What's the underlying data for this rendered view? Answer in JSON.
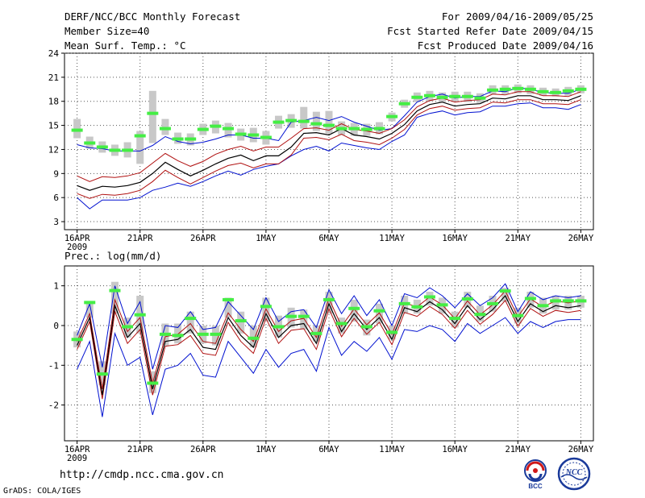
{
  "header": {
    "title": "DERF/NCC/BCC Monthly Forecast",
    "member_size": "Member Size=40",
    "variable": "Mean Surf. Temp.: °C",
    "period": "For 2009/04/16-2009/05/25",
    "fcst_started": "Fcst Started Refer Date 2009/04/15",
    "fcst_produced": "Fcst Produced Date 2009/04/16"
  },
  "footer": {
    "url": "http://cmdp.ncc.cma.gov.cn",
    "grads": "GrADS: COLA/IGES",
    "logo_bcc": "BCC",
    "logo_ncc": "NCC"
  },
  "colors": {
    "observed": "#44ee44",
    "box": "#c8c8c8",
    "mean": "#000000",
    "inner_band": "#b01010",
    "outer_band": "#0010d0",
    "grid": "#555555"
  },
  "chart_data": [
    {
      "type": "line",
      "title": "Mean Surf. Temp.: °C",
      "x_labels": [
        "16APR",
        "21APR",
        "26APR",
        "1MAY",
        "6MAY",
        "11MAY",
        "16MAY",
        "21MAY",
        "26MAY"
      ],
      "x_year_label": "2009",
      "x_range": [
        1,
        41
      ],
      "ylim": [
        2,
        24
      ],
      "yticks": [
        3,
        6,
        9,
        12,
        15,
        18,
        21,
        24
      ],
      "observed": [
        14.4,
        12.8,
        12.3,
        11.9,
        11.9,
        13.7,
        16.5,
        14.6,
        13.3,
        13.3,
        14.5,
        14.9,
        14.6,
        13.9,
        13.8,
        13.5,
        15.4,
        15.6,
        15.5,
        15.2,
        15.0,
        14.6,
        14.6,
        14.5,
        14.6,
        16.1,
        17.7,
        18.5,
        18.7,
        18.5,
        18.6,
        18.6,
        18.4,
        19.4,
        19.5,
        19.6,
        19.5,
        19.2,
        19.1,
        19.3,
        19.5
      ],
      "box_low": [
        13.4,
        12.1,
        11.6,
        11.2,
        11.0,
        10.2,
        12.8,
        13.8,
        12.7,
        12.5,
        13.8,
        14.0,
        13.5,
        13.1,
        12.9,
        12.6,
        14.6,
        14.7,
        14.6,
        14.3,
        14.0,
        13.8,
        13.7,
        13.7,
        13.9,
        15.5,
        17.2,
        17.9,
        18.0,
        17.9,
        18.0,
        17.9,
        17.8,
        18.9,
        18.9,
        19.0,
        18.9,
        18.7,
        18.6,
        18.7,
        19.0
      ],
      "box_high": [
        15.8,
        13.6,
        13.0,
        12.6,
        12.9,
        14.3,
        19.3,
        15.8,
        14.1,
        14.0,
        15.2,
        15.6,
        15.3,
        14.6,
        14.7,
        14.3,
        16.2,
        16.4,
        17.3,
        16.7,
        16.8,
        15.5,
        15.3,
        15.2,
        15.4,
        16.6,
        18.2,
        19.1,
        19.3,
        19.1,
        19.2,
        19.2,
        19.0,
        20.0,
        20.0,
        20.1,
        20.0,
        19.7,
        19.6,
        19.8,
        20.0
      ],
      "ens_mean": [
        7.5,
        6.9,
        7.4,
        7.3,
        7.5,
        7.9,
        9.0,
        10.4,
        9.5,
        8.7,
        9.4,
        10.2,
        10.9,
        11.3,
        10.6,
        11.2,
        11.2,
        12.3,
        14.0,
        14.1,
        13.8,
        14.6,
        13.8,
        13.6,
        13.3,
        14.0,
        15.1,
        16.8,
        17.6,
        17.9,
        17.4,
        17.6,
        17.7,
        18.4,
        18.3,
        18.7,
        18.7,
        18.2,
        18.2,
        18.1,
        18.7
      ],
      "inner_upper": [
        8.7,
        8.0,
        8.6,
        8.5,
        8.7,
        9.1,
        10.3,
        11.5,
        10.6,
        9.9,
        10.5,
        11.4,
        12.0,
        12.4,
        11.8,
        12.3,
        12.3,
        13.4,
        14.6,
        14.7,
        14.4,
        15.2,
        14.5,
        14.3,
        14.0,
        14.6,
        15.7,
        17.3,
        18.1,
        18.4,
        17.9,
        18.1,
        18.2,
        18.9,
        18.8,
        19.2,
        19.2,
        18.7,
        18.7,
        18.6,
        19.2
      ],
      "inner_lower": [
        6.5,
        5.9,
        6.4,
        6.3,
        6.5,
        6.9,
        8.0,
        9.4,
        8.5,
        7.7,
        8.5,
        9.3,
        10.0,
        10.3,
        9.7,
        10.2,
        10.2,
        11.3,
        13.4,
        13.5,
        13.2,
        13.9,
        13.1,
        12.9,
        12.6,
        13.4,
        14.5,
        16.3,
        17.1,
        17.4,
        16.9,
        17.1,
        17.2,
        17.9,
        17.8,
        18.2,
        18.2,
        17.7,
        17.7,
        17.6,
        18.2
      ],
      "outer_upper": [
        12.6,
        12.2,
        12.1,
        11.8,
        11.8,
        11.8,
        12.5,
        13.6,
        13.0,
        12.7,
        12.9,
        13.3,
        13.8,
        13.8,
        13.4,
        13.4,
        13.1,
        15.4,
        15.6,
        16.0,
        15.6,
        16.1,
        15.4,
        14.9,
        14.4,
        14.6,
        16.2,
        17.9,
        18.6,
        18.9,
        18.4,
        18.6,
        18.6,
        19.3,
        19.2,
        19.7,
        19.5,
        19.1,
        19.0,
        19.0,
        19.5
      ],
      "outer_lower": [
        6.0,
        4.6,
        5.7,
        5.7,
        5.7,
        6.0,
        6.9,
        7.3,
        7.8,
        7.4,
        8.0,
        8.7,
        9.3,
        8.8,
        9.5,
        9.9,
        10.2,
        11.2,
        12.0,
        12.4,
        11.8,
        12.8,
        12.5,
        12.2,
        12.0,
        13.0,
        13.8,
        16.0,
        16.5,
        16.8,
        16.3,
        16.6,
        16.7,
        17.4,
        17.4,
        17.7,
        17.8,
        17.2,
        17.2,
        17.0,
        17.6
      ]
    },
    {
      "type": "line",
      "title": "Prec.: log(mm/d)",
      "x_labels": [
        "16APR",
        "21APR",
        "26APR",
        "1MAY",
        "6MAY",
        "11MAY",
        "16MAY",
        "21MAY",
        "26MAY"
      ],
      "x_year_label": "2009",
      "x_range": [
        1,
        41
      ],
      "ylim": [
        -2.9,
        1.5
      ],
      "yticks": [
        -2,
        -1,
        0,
        1
      ],
      "observed": [
        -0.35,
        0.58,
        -1.22,
        0.88,
        -0.03,
        0.27,
        -1.45,
        -0.22,
        -0.25,
        0.18,
        -0.22,
        -0.22,
        0.65,
        0.12,
        -0.32,
        0.48,
        -0.03,
        0.23,
        0.23,
        -0.2,
        0.65,
        0.05,
        0.43,
        -0.03,
        0.37,
        -0.17,
        0.55,
        0.47,
        0.72,
        0.52,
        0.18,
        0.67,
        0.28,
        0.55,
        0.87,
        0.25,
        0.68,
        0.5,
        0.62,
        0.62,
        0.62
      ],
      "box_low": [
        -0.55,
        0.2,
        -1.5,
        0.3,
        -0.3,
        -0.2,
        -1.7,
        -0.5,
        -0.45,
        -0.2,
        -0.45,
        -0.5,
        0.2,
        -0.2,
        -0.55,
        0.1,
        -0.3,
        -0.05,
        -0.1,
        -0.4,
        0.3,
        -0.2,
        0.1,
        -0.25,
        0.05,
        -0.35,
        0.3,
        0.3,
        0.5,
        0.3,
        -0.05,
        0.45,
        0.1,
        0.35,
        0.6,
        0.05,
        0.45,
        0.3,
        0.4,
        0.4,
        0.45
      ],
      "box_high": [
        -0.15,
        0.6,
        -0.9,
        1.1,
        0.2,
        0.75,
        -1.15,
        0.05,
        0.05,
        0.35,
        0.0,
        0.0,
        0.7,
        0.35,
        0.0,
        0.7,
        0.25,
        0.45,
        0.4,
        0.0,
        0.85,
        0.2,
        0.65,
        0.15,
        0.55,
        0.0,
        0.75,
        0.65,
        0.85,
        0.7,
        0.35,
        0.85,
        0.5,
        0.75,
        0.95,
        0.45,
        0.85,
        0.7,
        0.75,
        0.75,
        0.75
      ],
      "ens_mean": [
        -0.5,
        0.2,
        -1.75,
        0.5,
        -0.3,
        0.05,
        -1.6,
        -0.4,
        -0.35,
        -0.1,
        -0.55,
        -0.6,
        0.2,
        -0.25,
        -0.55,
        0.3,
        -0.3,
        0.0,
        0.05,
        -0.45,
        0.55,
        -0.15,
        0.3,
        -0.1,
        0.2,
        -0.35,
        0.45,
        0.35,
        0.6,
        0.4,
        0.05,
        0.5,
        0.15,
        0.4,
        0.75,
        0.1,
        0.55,
        0.35,
        0.5,
        0.45,
        0.5
      ],
      "inner_upper": [
        -0.4,
        0.3,
        -1.6,
        0.65,
        -0.15,
        0.2,
        -1.45,
        -0.28,
        -0.22,
        0.05,
        -0.4,
        -0.45,
        0.32,
        -0.1,
        -0.4,
        0.42,
        -0.15,
        0.12,
        0.18,
        -0.3,
        0.68,
        -0.02,
        0.42,
        0.02,
        0.32,
        -0.22,
        0.57,
        0.47,
        0.72,
        0.52,
        0.17,
        0.62,
        0.27,
        0.52,
        0.87,
        0.22,
        0.67,
        0.47,
        0.62,
        0.57,
        0.62
      ],
      "inner_lower": [
        -0.6,
        0.1,
        -1.85,
        0.35,
        -0.45,
        -0.1,
        -1.75,
        -0.52,
        -0.48,
        -0.25,
        -0.7,
        -0.75,
        0.08,
        -0.4,
        -0.7,
        0.18,
        -0.45,
        -0.12,
        -0.08,
        -0.6,
        0.42,
        -0.28,
        0.18,
        -0.22,
        0.08,
        -0.48,
        0.33,
        0.23,
        0.48,
        0.28,
        -0.07,
        0.38,
        0.03,
        0.28,
        0.63,
        -0.02,
        0.43,
        0.23,
        0.38,
        0.33,
        0.38
      ],
      "outer_upper": [
        -0.25,
        0.55,
        -1.05,
        1.0,
        0.05,
        0.6,
        -1.1,
        0.0,
        -0.05,
        0.35,
        -0.1,
        -0.05,
        0.6,
        0.25,
        -0.1,
        0.7,
        0.1,
        0.35,
        0.4,
        -0.05,
        0.9,
        0.3,
        0.75,
        0.25,
        0.65,
        0.0,
        0.8,
        0.7,
        0.95,
        0.75,
        0.45,
        0.8,
        0.5,
        0.7,
        1.05,
        0.35,
        0.85,
        0.65,
        0.75,
        0.7,
        0.75
      ],
      "outer_lower": [
        -1.1,
        -0.4,
        -2.3,
        -0.2,
        -1.0,
        -0.8,
        -2.25,
        -1.1,
        -1.0,
        -0.7,
        -1.25,
        -1.3,
        -0.4,
        -0.8,
        -1.2,
        -0.6,
        -1.05,
        -0.7,
        -0.6,
        -1.15,
        -0.05,
        -0.75,
        -0.4,
        -0.65,
        -0.3,
        -0.85,
        -0.1,
        -0.15,
        0.0,
        -0.1,
        -0.4,
        0.05,
        -0.2,
        0.0,
        0.2,
        -0.2,
        0.1,
        -0.05,
        0.1,
        0.15,
        0.15
      ]
    }
  ]
}
